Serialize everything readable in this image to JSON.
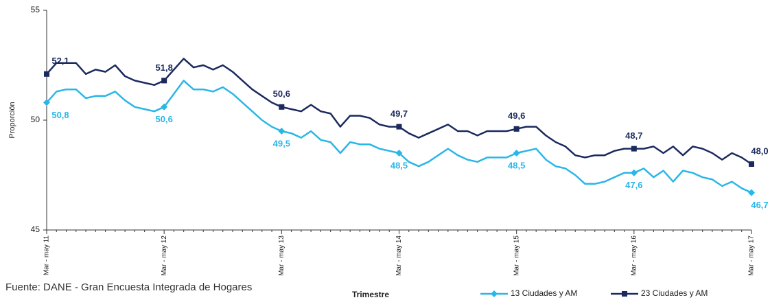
{
  "chart_data": {
    "type": "line",
    "y_label": "Proporción",
    "x_label": "Trimestre",
    "source": "Fuente: DANE - Gran Encuesta Integrada de Hogares",
    "categories": [
      "Mar - may 11",
      null,
      null,
      null,
      null,
      null,
      null,
      null,
      null,
      null,
      null,
      null,
      "Mar - may 12",
      null,
      null,
      null,
      null,
      null,
      null,
      null,
      null,
      null,
      null,
      null,
      "Mar - may 13",
      null,
      null,
      null,
      null,
      null,
      null,
      null,
      null,
      null,
      null,
      null,
      "Mar - may 14",
      null,
      null,
      null,
      null,
      null,
      null,
      null,
      null,
      null,
      null,
      null,
      "Mar - may 15",
      null,
      null,
      null,
      null,
      null,
      null,
      null,
      null,
      null,
      null,
      null,
      "Mar - may 16",
      null,
      null,
      null,
      null,
      null,
      null,
      null,
      null,
      null,
      null,
      null,
      "Mar - may 17"
    ],
    "ylim": [
      45,
      55
    ],
    "yticks": [
      45,
      50,
      55
    ],
    "series": [
      {
        "name": "13 Ciudades y AM",
        "color": "#29b6e8",
        "marker": "diamond",
        "values": [
          50.8,
          51.3,
          51.4,
          51.4,
          51.0,
          51.1,
          51.1,
          51.3,
          50.9,
          50.6,
          50.5,
          50.4,
          50.6,
          51.2,
          51.8,
          51.4,
          51.4,
          51.3,
          51.5,
          51.2,
          50.8,
          50.4,
          50.0,
          49.7,
          49.5,
          49.4,
          49.2,
          49.5,
          49.1,
          49.0,
          48.5,
          49.0,
          48.9,
          48.9,
          48.7,
          48.6,
          48.5,
          48.1,
          47.9,
          48.1,
          48.4,
          48.7,
          48.4,
          48.2,
          48.1,
          48.3,
          48.3,
          48.3,
          48.5,
          48.6,
          48.7,
          48.2,
          47.9,
          47.8,
          47.5,
          47.1,
          47.1,
          47.2,
          47.4,
          47.6,
          47.6,
          47.8,
          47.4,
          47.7,
          47.2,
          47.7,
          47.6,
          47.4,
          47.3,
          47.0,
          47.2,
          46.9,
          46.7
        ],
        "value_labels": [
          "50,8",
          null,
          null,
          null,
          null,
          null,
          null,
          null,
          null,
          null,
          null,
          null,
          "50,6",
          null,
          null,
          null,
          null,
          null,
          null,
          null,
          null,
          null,
          null,
          null,
          "49,5",
          null,
          null,
          null,
          null,
          null,
          null,
          null,
          null,
          null,
          null,
          null,
          "48,5",
          null,
          null,
          null,
          null,
          null,
          null,
          null,
          null,
          null,
          null,
          null,
          "48,5",
          null,
          null,
          null,
          null,
          null,
          null,
          null,
          null,
          null,
          null,
          null,
          "47,6",
          null,
          null,
          null,
          null,
          null,
          null,
          null,
          null,
          null,
          null,
          null,
          "46,7"
        ]
      },
      {
        "name": "23 Ciudades y AM",
        "color": "#1b2a5e",
        "marker": "square",
        "values": [
          52.1,
          52.6,
          52.6,
          52.6,
          52.1,
          52.3,
          52.2,
          52.5,
          52.0,
          51.8,
          51.7,
          51.6,
          51.8,
          52.3,
          52.8,
          52.4,
          52.5,
          52.3,
          52.5,
          52.2,
          51.8,
          51.4,
          51.1,
          50.8,
          50.6,
          50.5,
          50.4,
          50.7,
          50.4,
          50.3,
          49.7,
          50.2,
          50.2,
          50.1,
          49.8,
          49.7,
          49.7,
          49.4,
          49.2,
          49.4,
          49.6,
          49.8,
          49.5,
          49.5,
          49.3,
          49.5,
          49.5,
          49.5,
          49.6,
          49.7,
          49.7,
          49.3,
          49.0,
          48.8,
          48.4,
          48.3,
          48.4,
          48.4,
          48.6,
          48.7,
          48.7,
          48.7,
          48.8,
          48.5,
          48.8,
          48.4,
          48.8,
          48.7,
          48.5,
          48.2,
          48.5,
          48.3,
          48.0
        ],
        "value_labels": [
          "52,1",
          null,
          null,
          null,
          null,
          null,
          null,
          null,
          null,
          null,
          null,
          null,
          "51,8",
          null,
          null,
          null,
          null,
          null,
          null,
          null,
          null,
          null,
          null,
          null,
          "50,6",
          null,
          null,
          null,
          null,
          null,
          null,
          null,
          null,
          null,
          null,
          null,
          "49,7",
          null,
          null,
          null,
          null,
          null,
          null,
          null,
          null,
          null,
          null,
          null,
          "49,6",
          null,
          null,
          null,
          null,
          null,
          null,
          null,
          null,
          null,
          null,
          null,
          "48,7",
          null,
          null,
          null,
          null,
          null,
          null,
          null,
          null,
          null,
          null,
          null,
          "48,0"
        ]
      }
    ]
  }
}
